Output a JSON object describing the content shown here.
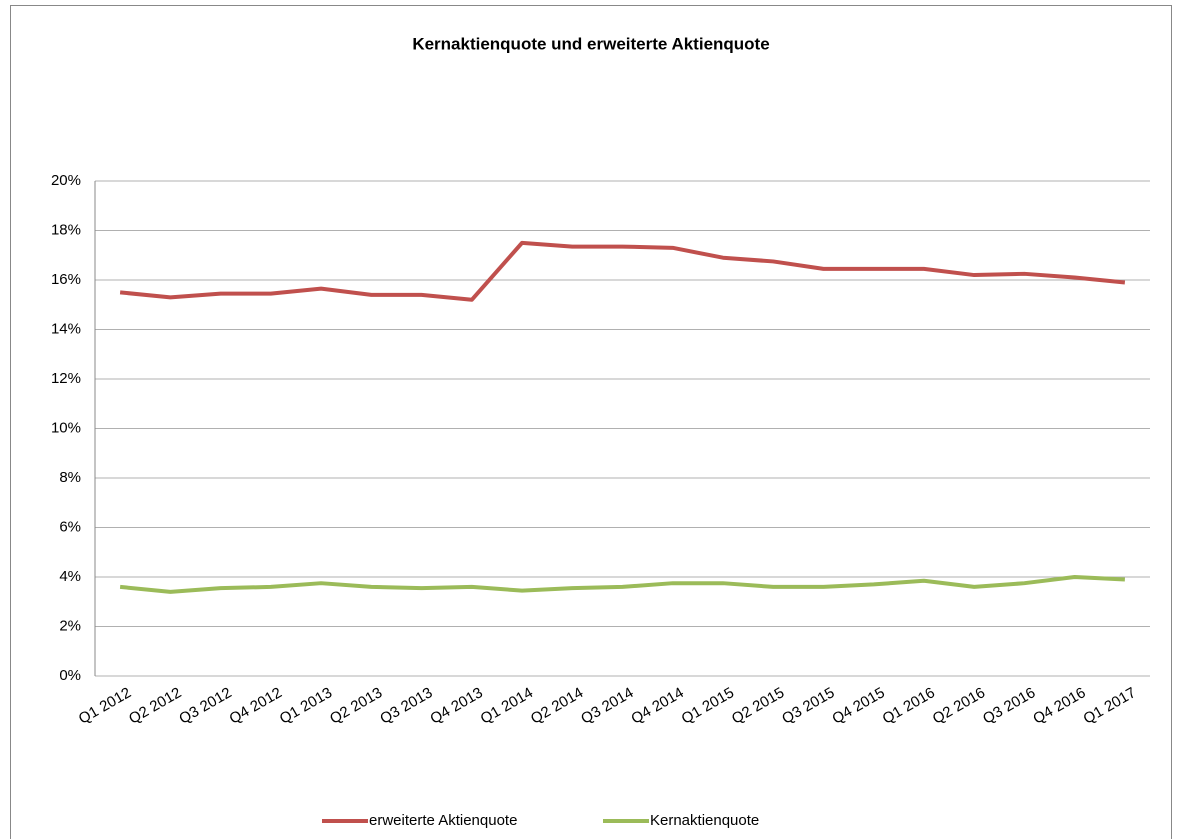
{
  "chart_data": {
    "type": "line",
    "title": "Kernaktienquote und erweiterte Aktienquote",
    "categories": [
      "Q1 2012",
      "Q2 2012",
      "Q3 2012",
      "Q4 2012",
      "Q1 2013",
      "Q2 2013",
      "Q3 2013",
      "Q4 2013",
      "Q1 2014",
      "Q2 2014",
      "Q3 2014",
      "Q4 2014",
      "Q1 2015",
      "Q2 2015",
      "Q3 2015",
      "Q4 2015",
      "Q1 2016",
      "Q2 2016",
      "Q3 2016",
      "Q4 2016",
      "Q1 2017"
    ],
    "series": [
      {
        "name": "erweiterte Aktienquote",
        "color": "#c0504d",
        "values": [
          15.5,
          15.3,
          15.45,
          15.45,
          15.65,
          15.4,
          15.4,
          15.2,
          17.5,
          17.35,
          17.35,
          17.3,
          16.9,
          16.75,
          16.45,
          16.45,
          16.45,
          16.2,
          16.25,
          16.1,
          15.9
        ]
      },
      {
        "name": "Kernaktienquote",
        "color": "#9bbb59",
        "values": [
          3.6,
          3.4,
          3.55,
          3.6,
          3.75,
          3.6,
          3.55,
          3.6,
          3.45,
          3.55,
          3.6,
          3.75,
          3.75,
          3.6,
          3.6,
          3.7,
          3.85,
          3.6,
          3.75,
          4.0,
          3.9
        ]
      }
    ],
    "ylim": [
      0,
      20
    ],
    "yticks": [
      {
        "value": 0,
        "label": "0%"
      },
      {
        "value": 2,
        "label": "2%"
      },
      {
        "value": 4,
        "label": "4%"
      },
      {
        "value": 6,
        "label": "6%"
      },
      {
        "value": 8,
        "label": "8%"
      },
      {
        "value": 10,
        "label": "10%"
      },
      {
        "value": 12,
        "label": "12%"
      },
      {
        "value": 14,
        "label": "14%"
      },
      {
        "value": 16,
        "label": "16%"
      },
      {
        "value": 18,
        "label": "18%"
      },
      {
        "value": 20,
        "label": "20%"
      }
    ],
    "grid": true,
    "legend": "bottom"
  }
}
